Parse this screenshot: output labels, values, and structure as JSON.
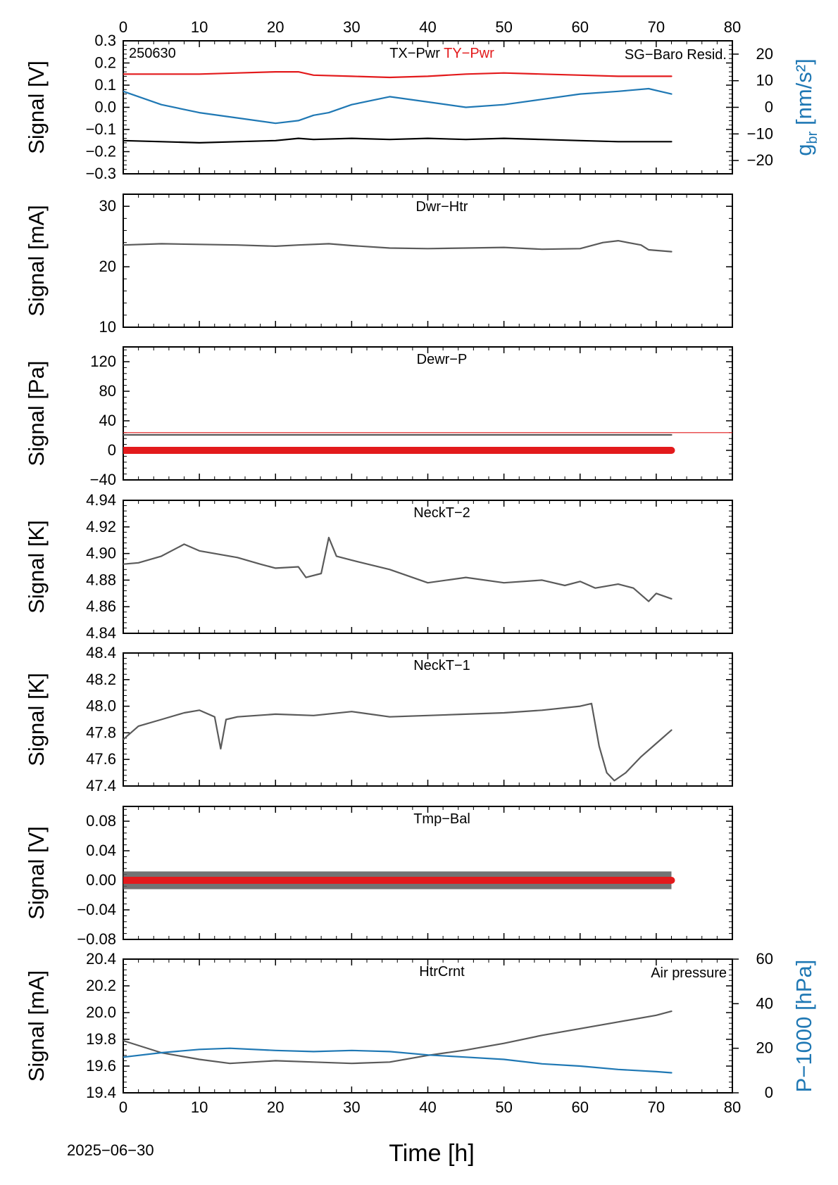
{
  "figure": {
    "date_label": "2025−06−30",
    "xlabel": "Time [h]",
    "x_ticks": [
      "0",
      "10",
      "20",
      "30",
      "40",
      "50",
      "60",
      "70",
      "80"
    ],
    "x_range": [
      0,
      80
    ]
  },
  "chart_data": [
    {
      "type": "line",
      "id": "p1",
      "code_label": "250630",
      "title_parts": [
        {
          "text": "TX−Pwr",
          "color": "#000000"
        },
        {
          "text": "TY−Pwr",
          "color": "#e31a1c"
        }
      ],
      "right_title": {
        "text": "SG−Baro Resid.",
        "color": "#1f78b4"
      },
      "ylabel": "Signal [V]",
      "ylim": [
        -0.3,
        0.3
      ],
      "y_ticks": [
        "0.3",
        "0.2",
        "0.1",
        "0.0",
        "−0.1",
        "−0.2",
        "−0.3"
      ],
      "y2label_main": "g",
      "y2label_sub": "br",
      "y2label_unit": " [nm/s²]",
      "y2lim": [
        -25,
        25
      ],
      "y2_ticks": [
        "20",
        "10",
        "0",
        "−10",
        "−20"
      ],
      "series": [
        {
          "name": "TY−Pwr",
          "color": "#e31a1c",
          "x": [
            0,
            5,
            10,
            15,
            20,
            23,
            25,
            30,
            35,
            40,
            45,
            50,
            55,
            60,
            65,
            69,
            72
          ],
          "y": [
            0.15,
            0.15,
            0.15,
            0.155,
            0.16,
            0.16,
            0.145,
            0.14,
            0.135,
            0.14,
            0.15,
            0.155,
            0.15,
            0.145,
            0.14,
            0.14,
            0.14
          ]
        },
        {
          "name": "TX−Pwr",
          "color": "#000000",
          "x": [
            0,
            5,
            10,
            15,
            20,
            23,
            25,
            30,
            35,
            40,
            45,
            50,
            55,
            60,
            65,
            69,
            72
          ],
          "y": [
            -0.15,
            -0.155,
            -0.16,
            -0.155,
            -0.15,
            -0.14,
            -0.145,
            -0.14,
            -0.145,
            -0.14,
            -0.145,
            -0.14,
            -0.145,
            -0.15,
            -0.155,
            -0.155,
            -0.155
          ]
        },
        {
          "name": "SG−Baro Resid.",
          "color": "#1f78b4",
          "axis": "y2",
          "x": [
            0,
            5,
            10,
            15,
            20,
            23,
            25,
            27,
            30,
            35,
            40,
            45,
            50,
            55,
            60,
            65,
            69,
            72
          ],
          "y": [
            6,
            1,
            -2,
            -4,
            -6,
            -5,
            -3,
            -2,
            1,
            4,
            2,
            0,
            1,
            3,
            5,
            6,
            7,
            5
          ]
        }
      ]
    },
    {
      "type": "line",
      "id": "p2",
      "title_parts": [
        {
          "text": "Dwr−Htr",
          "color": "#000000"
        }
      ],
      "ylabel": "Signal [mA]",
      "ylim": [
        10,
        32
      ],
      "y_ticks": [
        "30",
        "20",
        "10"
      ],
      "series": [
        {
          "name": "",
          "color": "#5a5a5a",
          "x": [
            0,
            5,
            10,
            15,
            20,
            23,
            27,
            30,
            35,
            40,
            45,
            50,
            55,
            60,
            63,
            65,
            68,
            69,
            72
          ],
          "y": [
            23.6,
            23.8,
            23.7,
            23.6,
            23.4,
            23.6,
            23.8,
            23.5,
            23.1,
            23.0,
            23.1,
            23.2,
            22.9,
            23.0,
            24.0,
            24.3,
            23.6,
            22.8,
            22.5
          ]
        }
      ]
    },
    {
      "type": "line",
      "id": "p3",
      "title_parts": [
        {
          "text": "Dewr−P",
          "color": "#000000"
        }
      ],
      "ylabel": "Signal [Pa]",
      "ylim": [
        -40,
        140
      ],
      "y_ticks": [
        "120",
        "80",
        "40",
        "0",
        "−40"
      ],
      "hline": {
        "y": 24,
        "color": "#e31a1c"
      },
      "series": [
        {
          "name": "",
          "color": "#5a5a5a",
          "x": [
            0,
            72
          ],
          "y": [
            21,
            21
          ]
        },
        {
          "name": "",
          "color": "#e31a1c",
          "x": [
            0,
            72
          ],
          "y": [
            0,
            0
          ]
        }
      ]
    },
    {
      "type": "line",
      "id": "p4",
      "title_parts": [
        {
          "text": "NeckT−2",
          "color": "#000000"
        }
      ],
      "ylabel": "Signal [K]",
      "ylim": [
        4.84,
        4.94
      ],
      "y_ticks": [
        "4.94",
        "4.92",
        "4.90",
        "4.88",
        "4.86",
        "4.84"
      ],
      "series": [
        {
          "name": "",
          "color": "#5a5a5a",
          "x": [
            0,
            2,
            5,
            8,
            10,
            15,
            18,
            20,
            23,
            24,
            26,
            27,
            28,
            30,
            35,
            40,
            45,
            50,
            55,
            58,
            60,
            62,
            65,
            67,
            69,
            70,
            72
          ],
          "y": [
            4.892,
            4.893,
            4.898,
            4.907,
            4.902,
            4.897,
            4.892,
            4.889,
            4.89,
            4.882,
            4.885,
            4.912,
            4.898,
            4.895,
            4.888,
            4.878,
            4.882,
            4.878,
            4.88,
            4.876,
            4.879,
            4.874,
            4.877,
            4.874,
            4.864,
            4.87,
            4.866
          ]
        }
      ]
    },
    {
      "type": "line",
      "id": "p5",
      "title_parts": [
        {
          "text": "NeckT−1",
          "color": "#000000"
        }
      ],
      "ylabel": "Signal [K]",
      "ylim": [
        47.4,
        48.4
      ],
      "y_ticks": [
        "48.4",
        "48.2",
        "48.0",
        "47.8",
        "47.6",
        "47.4"
      ],
      "series": [
        {
          "name": "",
          "color": "#5a5a5a",
          "x": [
            0,
            2,
            5,
            8,
            10,
            12,
            12.8,
            13.5,
            15,
            20,
            25,
            30,
            35,
            40,
            45,
            50,
            55,
            60,
            61.5,
            62.5,
            63.5,
            64.5,
            66,
            68,
            70,
            72
          ],
          "y": [
            47.75,
            47.85,
            47.9,
            47.95,
            47.97,
            47.92,
            47.68,
            47.9,
            47.92,
            47.94,
            47.93,
            47.96,
            47.92,
            47.93,
            47.94,
            47.95,
            47.97,
            48.0,
            48.02,
            47.7,
            47.5,
            47.44,
            47.5,
            47.62,
            47.72,
            47.82
          ]
        }
      ]
    },
    {
      "type": "line",
      "id": "p6",
      "title_parts": [
        {
          "text": "Tmp−Bal",
          "color": "#000000"
        }
      ],
      "ylabel": "Signal [V]",
      "ylim": [
        -0.08,
        0.1
      ],
      "y_ticks": [
        "0.08",
        "0.04",
        "0.00",
        "−0.04",
        "−0.08"
      ],
      "noise_band": 0.012,
      "series": [
        {
          "name": "",
          "color": "#5a5a5a",
          "x": [
            0,
            72
          ],
          "y": [
            0.0,
            0.0
          ]
        },
        {
          "name": "",
          "color": "#e31a1c",
          "x": [
            0,
            72
          ],
          "y": [
            0.0,
            0.0
          ]
        }
      ]
    },
    {
      "type": "line",
      "id": "p7",
      "title_parts": [
        {
          "text": "HtrCrnt",
          "color": "#000000"
        }
      ],
      "right_title": {
        "text": "Air pressure",
        "color": "#1f78b4"
      },
      "ylabel": "Signal [mA]",
      "ylim": [
        19.4,
        20.4
      ],
      "y_ticks": [
        "20.4",
        "20.2",
        "20.0",
        "19.8",
        "19.6",
        "19.4"
      ],
      "y2label_main": "P−1000 [hPa]",
      "y2lim": [
        0,
        60
      ],
      "y2_ticks": [
        "60",
        "40",
        "20",
        "0"
      ],
      "series": [
        {
          "name": "HtrCrnt",
          "color": "#5a5a5a",
          "x": [
            0,
            5,
            10,
            14,
            20,
            25,
            30,
            35,
            40,
            45,
            50,
            55,
            60,
            65,
            70,
            72
          ],
          "y": [
            19.79,
            19.7,
            19.65,
            19.62,
            19.64,
            19.63,
            19.62,
            19.63,
            19.68,
            19.72,
            19.77,
            19.83,
            19.88,
            19.93,
            19.98,
            20.01
          ]
        },
        {
          "name": "Air pressure",
          "color": "#1f78b4",
          "axis": "y2",
          "x": [
            0,
            5,
            10,
            14,
            20,
            25,
            30,
            35,
            40,
            45,
            50,
            55,
            60,
            65,
            70,
            72
          ],
          "y": [
            16,
            18,
            19.5,
            20,
            19,
            18.5,
            19,
            18.5,
            17,
            16,
            15,
            13,
            12,
            10.5,
            9.5,
            9
          ]
        }
      ]
    }
  ]
}
